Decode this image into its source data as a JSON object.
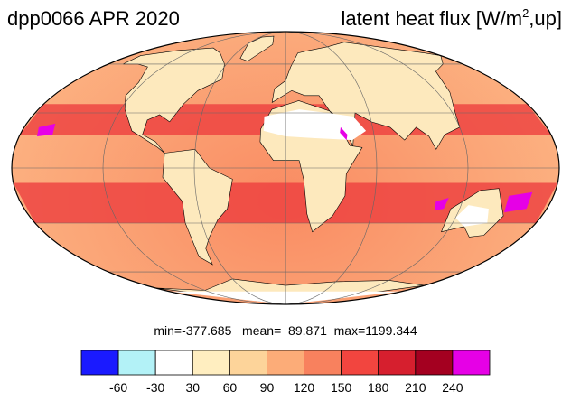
{
  "title": {
    "experiment": "dpp0066",
    "date": "APR 2020",
    "variable": "latent heat flux [W/m",
    "unit_sup": "2",
    "unit_tail": ",up]"
  },
  "stats": {
    "min_label": "min=",
    "min": "-377.685",
    "mean_label": "mean=",
    "mean": "89.871",
    "max_label": "max=",
    "max": "1199.344"
  },
  "colorbar": {
    "ticks": [
      "-60",
      "-30",
      "30",
      "60",
      "90",
      "120",
      "150",
      "180",
      "210",
      "240"
    ],
    "colors": [
      "#1a1aff",
      "#b3f2f7",
      "#ffffff",
      "#ffeec0",
      "#fdd49a",
      "#fcac78",
      "#f8815e",
      "#f2453f",
      "#d61f2e",
      "#a40020",
      "#e600e6"
    ]
  },
  "map": {
    "projection": "mollweide",
    "ocean_high_color": "#ee3e3e",
    "ocean_mid_color": "#f98b62",
    "land_dry_color": "#ffffff",
    "land_color": "#fde9bd",
    "grid_color": "#666666",
    "coast_color": "#000000"
  }
}
